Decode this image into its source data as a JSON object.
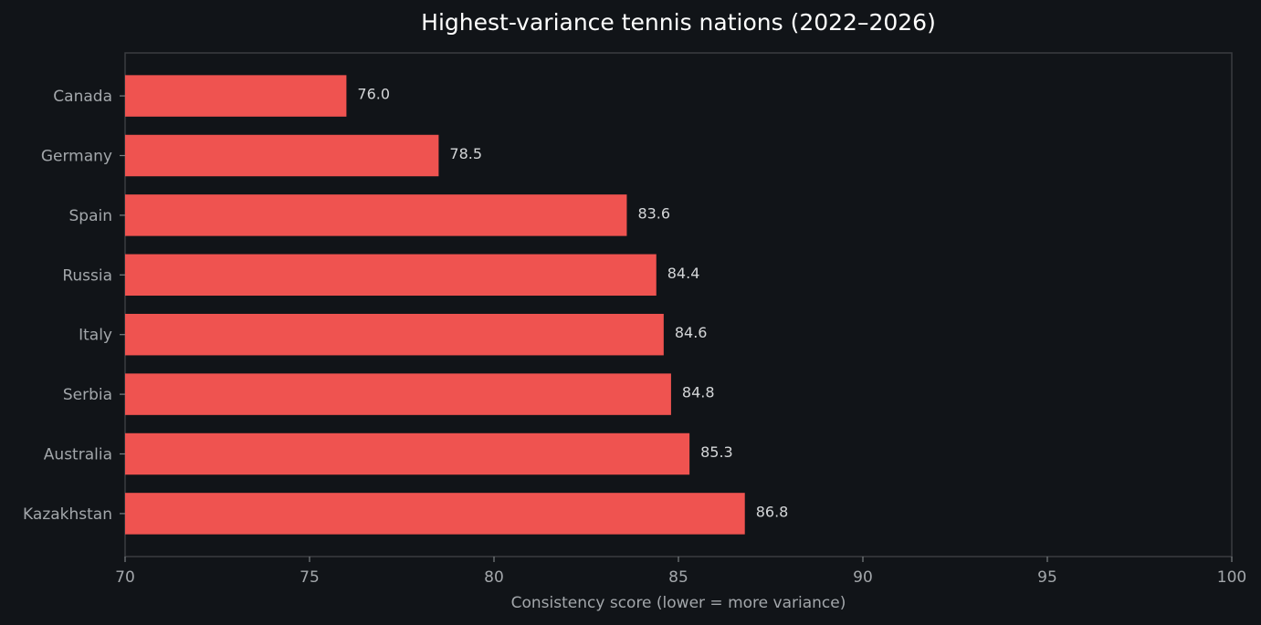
{
  "chart_data": {
    "type": "barh",
    "title": "Highest-variance tennis nations (2022–2026)",
    "x_label": "Consistency score (lower = more variance)",
    "categories": [
      "Canada",
      "Germany",
      "Spain",
      "Russia",
      "Italy",
      "Serbia",
      "Australia",
      "Kazakhstan"
    ],
    "values": [
      76.0,
      78.5,
      83.6,
      84.4,
      84.6,
      84.8,
      85.3,
      86.8
    ],
    "value_labels": [
      "76.0",
      "78.5",
      "83.6",
      "84.4",
      "84.6",
      "84.8",
      "85.3",
      "86.8"
    ],
    "color": "#ef5350",
    "xlim": [
      70,
      100
    ],
    "xticks": [
      70,
      75,
      80,
      85,
      90,
      95,
      100
    ],
    "grid": false
  }
}
